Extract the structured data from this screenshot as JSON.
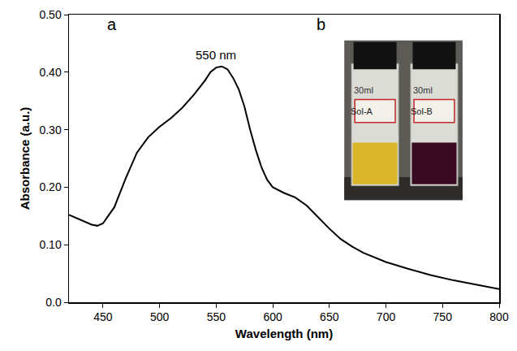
{
  "chart_data": {
    "type": "line",
    "x_label": "Wavelength (nm)",
    "y_label": "Absorbance (a.u.)",
    "x": [
      420,
      430,
      440,
      445,
      450,
      460,
      470,
      480,
      490,
      500,
      510,
      520,
      530,
      540,
      545,
      550,
      555,
      560,
      565,
      570,
      575,
      580,
      585,
      590,
      595,
      600,
      610,
      620,
      630,
      640,
      650,
      660,
      670,
      680,
      700,
      720,
      740,
      760,
      780,
      800
    ],
    "series": [
      {
        "values": [
          0.152,
          0.143,
          0.135,
          0.133,
          0.137,
          0.165,
          0.215,
          0.26,
          0.287,
          0.305,
          0.32,
          0.338,
          0.36,
          0.385,
          0.4,
          0.408,
          0.41,
          0.405,
          0.39,
          0.37,
          0.34,
          0.3,
          0.265,
          0.235,
          0.213,
          0.2,
          0.19,
          0.182,
          0.168,
          0.148,
          0.128,
          0.11,
          0.097,
          0.086,
          0.07,
          0.058,
          0.047,
          0.038,
          0.03,
          0.023
        ],
        "color": "#000000",
        "line_style": "solid"
      }
    ],
    "xlim": [
      420,
      800
    ],
    "xticks": [
      450,
      500,
      550,
      600,
      650,
      700,
      750,
      800
    ],
    "ylim": [
      0,
      0.5
    ],
    "yticks": [
      {
        "value": 0,
        "label": "0.0"
      },
      {
        "value": 0.1,
        "label": "0.10"
      },
      {
        "value": 0.2,
        "label": "0.20"
      },
      {
        "value": 0.3,
        "label": "0.30"
      },
      {
        "value": 0.4,
        "label": "0.40"
      },
      {
        "value": 0.5,
        "label": "0.50"
      }
    ],
    "grid": false,
    "annotations": [
      {
        "text": "550 nm",
        "x": 550,
        "y": 0.43
      }
    ],
    "panel_labels": [
      "a",
      "b"
    ],
    "inset": {
      "volume": "30ml",
      "vials": [
        {
          "label": "Sol-A",
          "color": "#d8b52a"
        },
        {
          "label": "Sol-B",
          "color": "#3a0a22"
        }
      ]
    }
  }
}
